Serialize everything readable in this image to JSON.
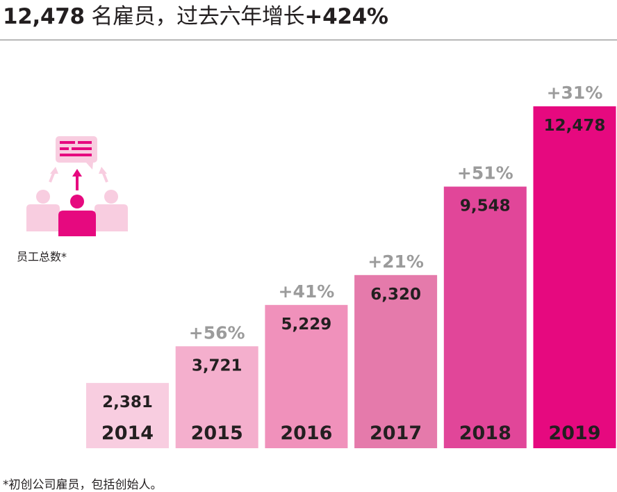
{
  "headline": {
    "count": "12,478",
    "middle": " 名雇员，过去六年增长",
    "growth": "+424%"
  },
  "icon": {
    "name": "team-feedback-icon",
    "label": "员工总数*"
  },
  "footnote": "*初创公司雇员，包括创始人。",
  "chart_data": {
    "type": "bar",
    "categories": [
      "2014",
      "2015",
      "2016",
      "2017",
      "2018",
      "2019"
    ],
    "values": [
      2381,
      3721,
      5229,
      6320,
      9548,
      12478
    ],
    "value_labels": [
      "2,381",
      "3,721",
      "5,229",
      "6,320",
      "9,548",
      "12,478"
    ],
    "growth_labels": [
      "",
      "+56%",
      "+41%",
      "+21%",
      "+51%",
      "+31%"
    ],
    "bar_colors": [
      "#f8cde0",
      "#f4afcd",
      "#f091bb",
      "#e57aab",
      "#e14699",
      "#e6097f"
    ],
    "title": "",
    "xlabel": "",
    "ylabel": "",
    "ylim": [
      0,
      12478
    ],
    "grid": false,
    "legend": "none"
  }
}
